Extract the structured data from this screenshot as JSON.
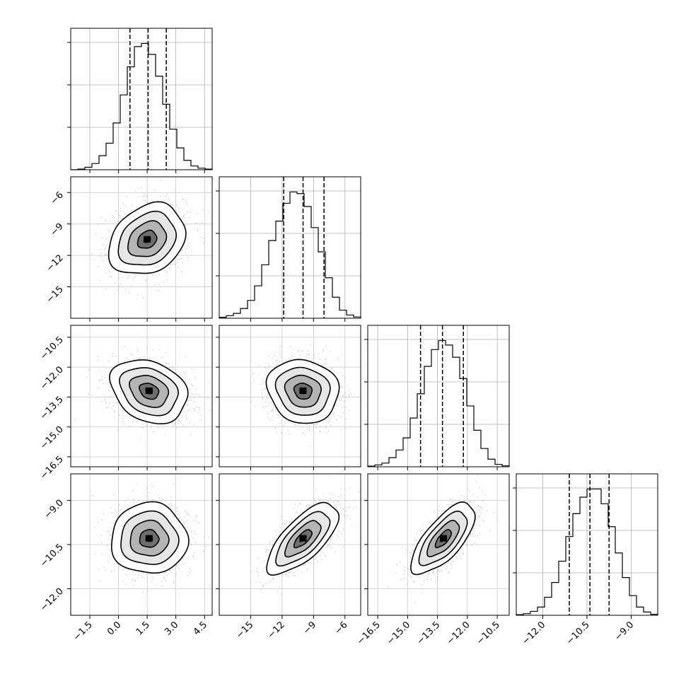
{
  "chart_data": {
    "type": "corner",
    "grid": true,
    "parameters": [
      {
        "range": [
          -2.5,
          4.9
        ],
        "ticks": [
          -1.5,
          0.0,
          1.5,
          3.0,
          4.5
        ],
        "tick_labels": [
          "−1.5",
          "0.0",
          "1.5",
          "3.0",
          "4.5"
        ],
        "quantiles": [
          0.6,
          1.55,
          2.5
        ],
        "hist": {
          "start": -2.5,
          "step": 0.37,
          "counts": [
            0,
            2,
            8,
            20,
            45,
            85,
            150,
            240,
            330,
            395,
            405,
            370,
            300,
            210,
            130,
            70,
            30,
            12,
            5,
            2
          ]
        }
      },
      {
        "range": [
          -18,
          -4.5
        ],
        "ticks": [
          -15,
          -12,
          -9,
          -6
        ],
        "tick_labels": [
          "−15",
          "−12",
          "−9",
          "−6"
        ],
        "quantiles": [
          -11.85,
          -10.0,
          -8.0
        ],
        "hist": {
          "start": -18,
          "step": 0.675,
          "counts": [
            3,
            8,
            15,
            30,
            55,
            100,
            165,
            240,
            300,
            355,
            390,
            385,
            345,
            280,
            205,
            125,
            65,
            25,
            10,
            4
          ]
        }
      },
      {
        "range": [
          -17.0,
          -9.9
        ],
        "ticks": [
          -16.5,
          -15.0,
          -13.5,
          -12.0,
          -10.5
        ],
        "tick_labels": [
          "−16.5",
          "−15.0",
          "−13.5",
          "−12.0",
          "−10.5"
        ],
        "quantiles": [
          -14.35,
          -13.25,
          -12.2
        ],
        "hist": {
          "start": -17.0,
          "step": 0.355,
          "counts": [
            2,
            6,
            12,
            30,
            55,
            95,
            160,
            240,
            330,
            385,
            415,
            400,
            360,
            290,
            200,
            120,
            60,
            25,
            8,
            3
          ]
        }
      },
      {
        "range": [
          -12.9,
          -8.1
        ],
        "ticks": [
          -12.0,
          -10.5,
          -9.0
        ],
        "tick_labels": [
          "−12.0",
          "−10.5",
          "−9.0"
        ],
        "quantiles": [
          -11.1,
          -10.4,
          -9.75
        ],
        "hist": {
          "start": -12.9,
          "step": 0.24,
          "counts": [
            2,
            5,
            12,
            25,
            55,
            100,
            165,
            240,
            310,
            360,
            385,
            385,
            340,
            270,
            190,
            115,
            60,
            25,
            10,
            3
          ]
        }
      }
    ],
    "pairs": [
      {
        "row": 1,
        "col": 0,
        "mean": [
          1.5,
          -10.5
        ],
        "sd": [
          1.0,
          1.7
        ],
        "rho": 0.25
      },
      {
        "row": 2,
        "col": 0,
        "mean": [
          1.6,
          -13.2
        ],
        "sd": [
          1.0,
          0.8
        ],
        "rho": -0.25
      },
      {
        "row": 2,
        "col": 1,
        "mean": [
          -10.0,
          -13.2
        ],
        "sd": [
          1.7,
          0.8
        ],
        "rho": -0.1
      },
      {
        "row": 3,
        "col": 0,
        "mean": [
          1.6,
          -10.3
        ],
        "sd": [
          1.0,
          0.6
        ],
        "rho": 0.0
      },
      {
        "row": 3,
        "col": 1,
        "mean": [
          -10.0,
          -10.3
        ],
        "sd": [
          1.7,
          0.6
        ],
        "rho": 0.7
      },
      {
        "row": 3,
        "col": 2,
        "mean": [
          -13.2,
          -10.3
        ],
        "sd": [
          0.8,
          0.6
        ],
        "rho": 0.7
      }
    ]
  }
}
